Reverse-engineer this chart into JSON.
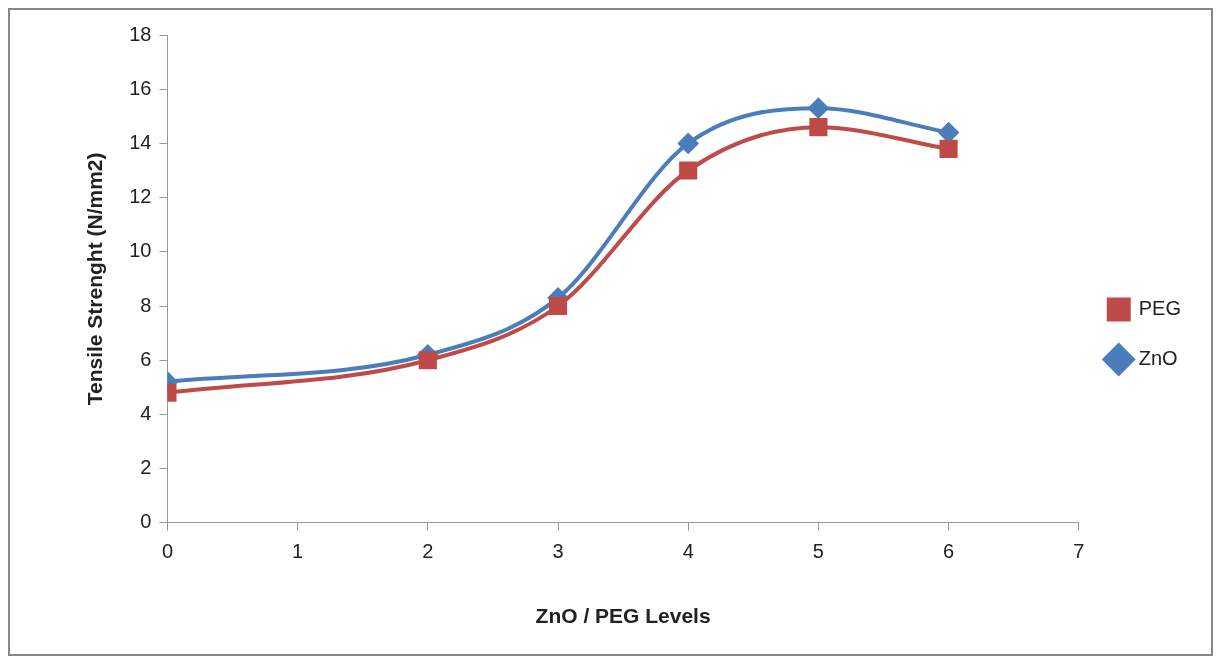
{
  "chart_data": {
    "type": "line",
    "xlabel": "ZnO / PEG Levels",
    "ylabel": "Tensile Strenght (N/mm2)",
    "x": [
      0,
      2,
      3,
      4,
      5,
      6
    ],
    "series": [
      {
        "name": "ZnO",
        "color": "#4a7ebb",
        "marker": "diamond",
        "values": [
          5.2,
          6.2,
          8.3,
          14.0,
          15.3,
          14.4
        ]
      },
      {
        "name": "PEG",
        "color": "#be4b48",
        "marker": "square",
        "values": [
          4.8,
          6.0,
          8.0,
          13.0,
          14.6,
          13.8
        ]
      }
    ],
    "xlim": [
      0,
      7
    ],
    "xticks": [
      0,
      1,
      2,
      3,
      4,
      5,
      6,
      7
    ],
    "ylim": [
      0,
      18
    ],
    "yticks": [
      0,
      2,
      4,
      6,
      8,
      10,
      12,
      14,
      16,
      18
    ],
    "grid": false,
    "legend": "right"
  }
}
